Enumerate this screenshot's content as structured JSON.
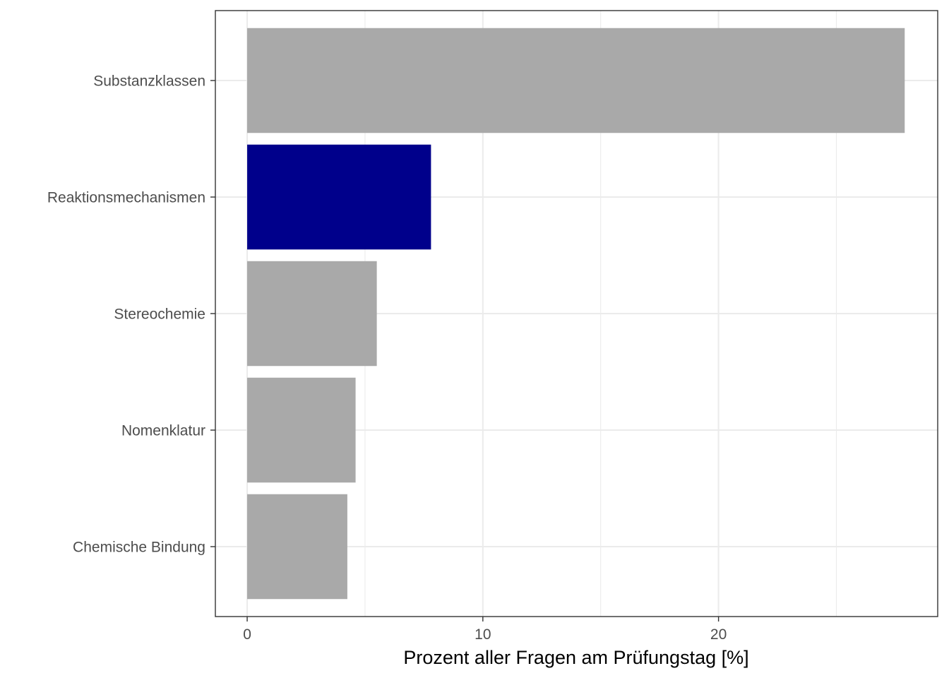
{
  "chart_data": {
    "type": "bar",
    "orientation": "horizontal",
    "categories": [
      "Substanzklassen",
      "Reaktionsmechanismen",
      "Stereochemie",
      "Nomenklatur",
      "Chemische Bindung"
    ],
    "values": [
      27.9,
      7.8,
      5.5,
      4.6,
      4.25
    ],
    "highlight_index": 1,
    "colors": {
      "bar": "#a9a9a9",
      "highlight": "#00008b",
      "grid": "#ebebeb",
      "panel_border": "#333333"
    },
    "xlabel": "Prozent aller Fragen am Prüfungstag [%]",
    "ylabel": "",
    "xlim": [
      -1.35,
      29.3
    ],
    "x_ticks": [
      0,
      10,
      20
    ],
    "x_minor_ticks": [
      5,
      15,
      25
    ],
    "grid": true,
    "legend": "none"
  }
}
